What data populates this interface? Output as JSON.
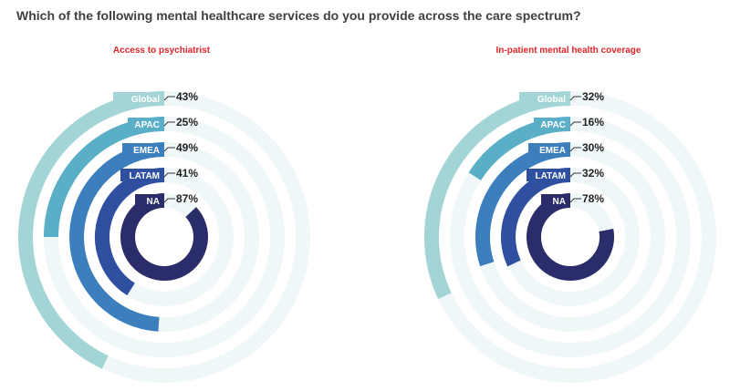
{
  "title": "Which of the following mental healthcare services do you provide across the care spectrum?",
  "colors": {
    "track": "#f0f7f8",
    "Global": "#a3d5d6",
    "APAC": "#5aaec6",
    "EMEA": "#3d7fbd",
    "LATAM": "#2f4fa0",
    "NA": "#2b2d6b",
    "subtitle": "#e0252b"
  },
  "chart_data": [
    {
      "type": "radial-bar",
      "title": "Access to psychiatrist",
      "unit": "%",
      "categories": [
        "Global",
        "APAC",
        "EMEA",
        "LATAM",
        "NA"
      ],
      "values": [
        43,
        25,
        49,
        41,
        87
      ],
      "labels": [
        "43%",
        "25%",
        "49%",
        "41%",
        "87%"
      ]
    },
    {
      "type": "radial-bar",
      "title": "In-patient mental health coverage",
      "unit": "%",
      "categories": [
        "Global",
        "APAC",
        "EMEA",
        "LATAM",
        "NA"
      ],
      "values": [
        32,
        16,
        30,
        32,
        78
      ],
      "labels": [
        "32%",
        "16%",
        "30%",
        "32%",
        "78%"
      ]
    }
  ]
}
